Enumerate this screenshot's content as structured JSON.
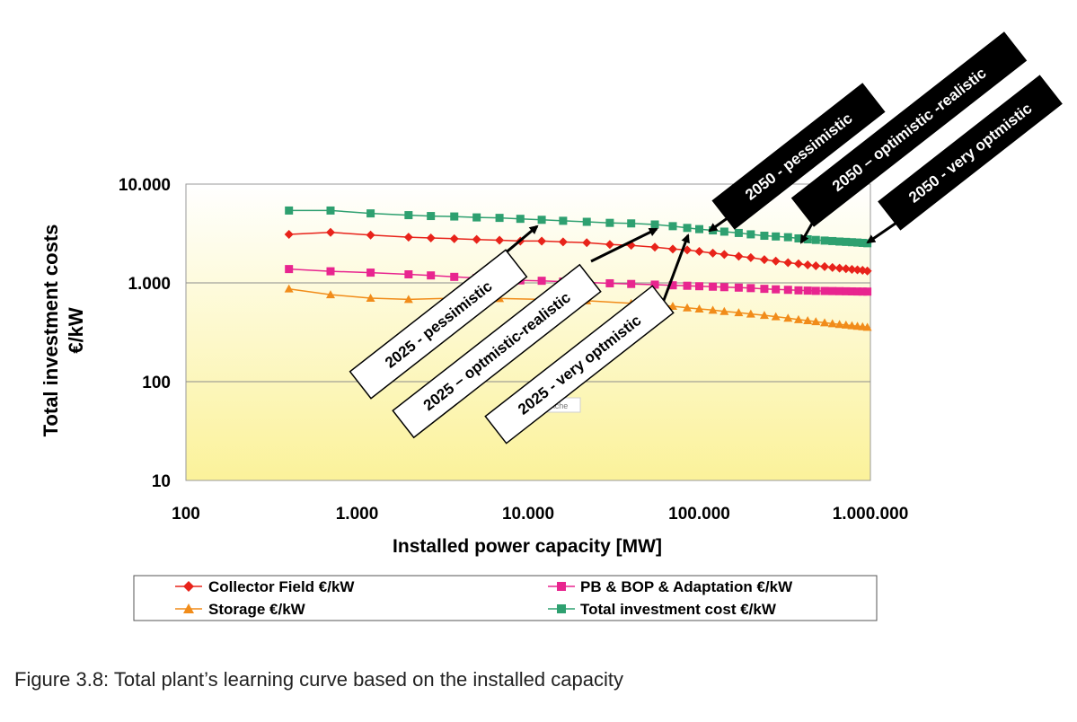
{
  "caption": "Figure 3.8: Total plant’s learning curve based on the installed capacity",
  "chart_data": {
    "type": "line",
    "xscale": "log",
    "yscale": "log",
    "xlim": [
      100,
      1000000
    ],
    "ylim": [
      10,
      10000
    ],
    "xlabel": "Installed power capacity [MW]",
    "ylabel": [
      "Total investment costs",
      "€/kW"
    ],
    "xticks": [
      100,
      1000,
      10000,
      100000,
      1000000
    ],
    "xtick_labels": [
      "100",
      "1.000",
      "10.000",
      "100.000",
      "1.000.000"
    ],
    "yticks": [
      10,
      100,
      1000,
      10000
    ],
    "ytick_labels": [
      "10",
      "100",
      "1.000",
      "10.000"
    ],
    "grid": "horizontal",
    "legend_position": "bottom",
    "series": [
      {
        "name": "Collector Field €/kW",
        "color": "#e8231a",
        "marker": "diamond",
        "x": [
          400,
          700,
          1200,
          2000,
          2700,
          3700,
          5000,
          6800,
          9000,
          12000,
          16000,
          22000,
          30000,
          40000,
          55000,
          70000,
          85000,
          100000,
          120000,
          140000,
          170000,
          200000,
          240000,
          280000,
          330000,
          380000,
          430000,
          480000,
          540000,
          600000,
          660000,
          720000,
          780000,
          840000,
          900000,
          960000
        ],
        "y": [
          3100,
          3250,
          3050,
          2900,
          2850,
          2800,
          2750,
          2700,
          2650,
          2650,
          2600,
          2550,
          2450,
          2400,
          2300,
          2200,
          2150,
          2080,
          2000,
          1940,
          1860,
          1800,
          1720,
          1660,
          1600,
          1560,
          1520,
          1490,
          1460,
          1430,
          1410,
          1390,
          1370,
          1355,
          1340,
          1320
        ]
      },
      {
        "name": "PB & BOP & Adaptation €/kW",
        "color": "#e8258f",
        "marker": "square",
        "x": [
          400,
          700,
          1200,
          2000,
          2700,
          3700,
          5000,
          6800,
          9000,
          12000,
          16000,
          22000,
          30000,
          40000,
          55000,
          70000,
          85000,
          100000,
          120000,
          140000,
          170000,
          200000,
          240000,
          280000,
          330000,
          380000,
          430000,
          480000,
          540000,
          600000,
          660000,
          720000,
          780000,
          840000,
          900000,
          960000
        ],
        "y": [
          1380,
          1310,
          1270,
          1220,
          1190,
          1150,
          1120,
          1090,
          1060,
          1050,
          1030,
          1010,
          990,
          975,
          960,
          945,
          935,
          925,
          915,
          905,
          895,
          885,
          870,
          860,
          850,
          840,
          835,
          830,
          828,
          826,
          824,
          822,
          820,
          818,
          817,
          816
        ]
      },
      {
        "name": "Storage €/kW",
        "color": "#f18c1a",
        "marker": "triangle",
        "x": [
          400,
          700,
          1200,
          2000,
          3700,
          6800,
          12000,
          22000,
          40000,
          55000,
          70000,
          85000,
          100000,
          120000,
          140000,
          170000,
          200000,
          240000,
          280000,
          330000,
          380000,
          430000,
          480000,
          540000,
          600000,
          660000,
          720000,
          780000,
          840000,
          900000,
          960000
        ],
        "y": [
          870,
          760,
          700,
          680,
          700,
          695,
          680,
          660,
          620,
          600,
          580,
          560,
          545,
          530,
          515,
          500,
          485,
          470,
          455,
          440,
          425,
          415,
          405,
          395,
          387,
          380,
          375,
          369,
          364,
          360,
          356
        ]
      },
      {
        "name": "Total investment cost €/kW",
        "color": "#2ea070",
        "marker": "square",
        "x": [
          400,
          700,
          1200,
          2000,
          2700,
          3700,
          5000,
          6800,
          9000,
          12000,
          16000,
          22000,
          30000,
          40000,
          55000,
          70000,
          85000,
          100000,
          120000,
          140000,
          170000,
          200000,
          240000,
          280000,
          330000,
          380000,
          430000,
          480000,
          540000,
          600000,
          660000,
          720000,
          780000,
          840000,
          900000,
          960000
        ],
        "y": [
          5400,
          5400,
          5050,
          4850,
          4750,
          4700,
          4600,
          4550,
          4450,
          4350,
          4250,
          4150,
          4050,
          4000,
          3900,
          3750,
          3600,
          3500,
          3400,
          3300,
          3200,
          3100,
          3000,
          2950,
          2900,
          2820,
          2760,
          2720,
          2680,
          2650,
          2620,
          2600,
          2580,
          2560,
          2540,
          2520
        ]
      }
    ],
    "annotations": [
      "2025 - pessimistic",
      "2025 – optmistic-realistic",
      "2025 - very optmistic",
      "2050 - pessimistic",
      "2050 – optimistic -realistic",
      "2050 - very optmistic"
    ],
    "faint_label": "Ache"
  }
}
